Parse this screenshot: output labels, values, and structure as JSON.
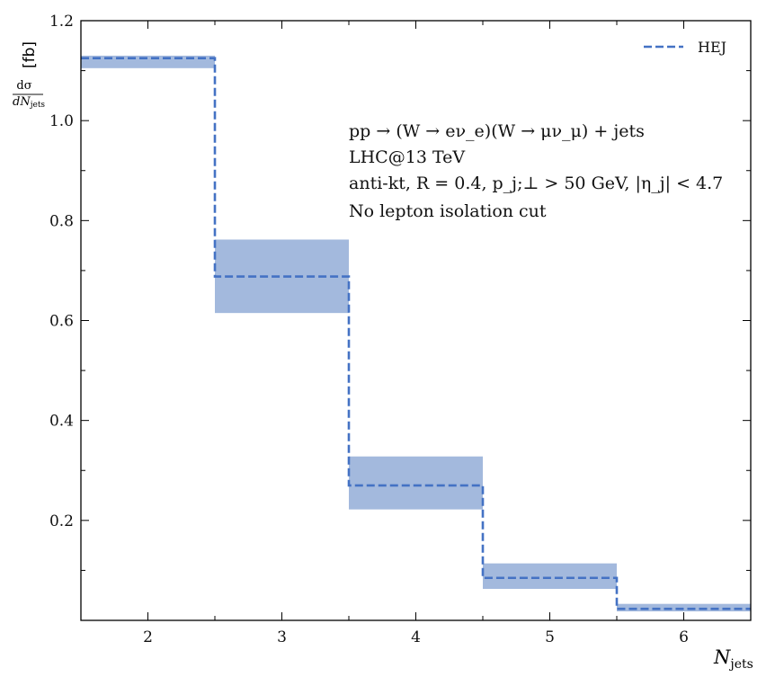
{
  "chart_data": {
    "type": "step",
    "title": "",
    "xlabel": "N_jets",
    "xlabel_main": "N",
    "xlabel_sub": "jets",
    "ylabel": "dσ/dN_jets [fb]",
    "ylabel_num": "dσ",
    "ylabel_den_main": "dN",
    "ylabel_den_sub": "jets",
    "ylabel_unit": "[fb]",
    "xlim": [
      1.5,
      6.5
    ],
    "ylim": [
      0.0,
      1.2
    ],
    "xticks": [
      2,
      3,
      4,
      5,
      6
    ],
    "xtick_labels": [
      "2",
      "3",
      "4",
      "5",
      "6"
    ],
    "yticks": [
      0.2,
      0.4,
      0.6,
      0.8,
      1.0,
      1.2
    ],
    "ytick_labels": [
      "0.2",
      "0.4",
      "0.6",
      "0.8",
      "1.0",
      "1.2"
    ],
    "grid": false,
    "legend_position": "top-right",
    "series": [
      {
        "name": "HEJ",
        "color": "#4472c4",
        "band_color": "#a3b9dd",
        "line_style": "dashed",
        "bins": [
          {
            "x_lo": 1.5,
            "x_hi": 2.5,
            "value": 1.125,
            "band_lo": 1.105,
            "band_hi": 1.13
          },
          {
            "x_lo": 2.5,
            "x_hi": 3.5,
            "value": 0.688,
            "band_lo": 0.615,
            "band_hi": 0.762
          },
          {
            "x_lo": 3.5,
            "x_hi": 4.5,
            "value": 0.27,
            "band_lo": 0.222,
            "band_hi": 0.328
          },
          {
            "x_lo": 4.5,
            "x_hi": 5.5,
            "value": 0.085,
            "band_lo": 0.063,
            "band_hi": 0.114
          },
          {
            "x_lo": 5.5,
            "x_hi": 6.5,
            "value": 0.023,
            "band_lo": 0.018,
            "band_hi": 0.033
          }
        ]
      }
    ],
    "annotations": [
      "pp → (W → eν_e)(W → μν_μ) + jets",
      "LHC@13 TeV",
      "anti-kt, R = 0.4, p_j;⊥ > 50 GeV, |η_j| < 4.7",
      "No lepton isolation cut"
    ]
  }
}
